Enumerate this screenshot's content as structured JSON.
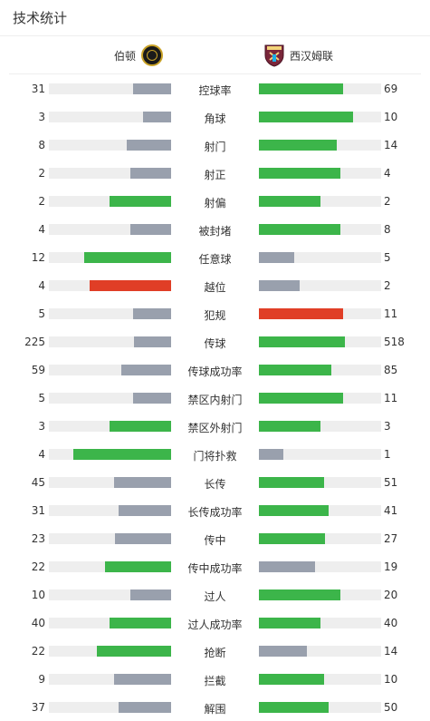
{
  "header": {
    "title": "技术统计"
  },
  "teams": {
    "home": {
      "name": "伯顿",
      "crest_icon": "burton-crest-icon"
    },
    "away": {
      "name": "西汉姆联",
      "crest_icon": "west-ham-crest-icon"
    }
  },
  "colors": {
    "lead": "#3cb54a",
    "trail": "#99a0ad",
    "card": "#e03e26",
    "track": "#eeeeee"
  },
  "stats": [
    {
      "label": "控球率",
      "home": "31",
      "away": "69",
      "home_frac": 0.31,
      "away_frac": 0.69,
      "home_color": "trail",
      "away_color": "lead"
    },
    {
      "label": "角球",
      "home": "3",
      "away": "10",
      "home_frac": 0.23,
      "away_frac": 0.77,
      "home_color": "trail",
      "away_color": "lead"
    },
    {
      "label": "射门",
      "home": "8",
      "away": "14",
      "home_frac": 0.36,
      "away_frac": 0.64,
      "home_color": "trail",
      "away_color": "lead"
    },
    {
      "label": "射正",
      "home": "2",
      "away": "4",
      "home_frac": 0.33,
      "away_frac": 0.67,
      "home_color": "trail",
      "away_color": "lead"
    },
    {
      "label": "射偏",
      "home": "2",
      "away": "2",
      "home_frac": 0.5,
      "away_frac": 0.5,
      "home_color": "lead",
      "away_color": "lead"
    },
    {
      "label": "被封堵",
      "home": "4",
      "away": "8",
      "home_frac": 0.33,
      "away_frac": 0.67,
      "home_color": "trail",
      "away_color": "lead"
    },
    {
      "label": "任意球",
      "home": "12",
      "away": "5",
      "home_frac": 0.71,
      "away_frac": 0.29,
      "home_color": "lead",
      "away_color": "trail"
    },
    {
      "label": "越位",
      "home": "4",
      "away": "2",
      "home_frac": 0.67,
      "away_frac": 0.33,
      "home_color": "card",
      "away_color": "trail"
    },
    {
      "label": "犯规",
      "home": "5",
      "away": "11",
      "home_frac": 0.31,
      "away_frac": 0.69,
      "home_color": "trail",
      "away_color": "card"
    },
    {
      "label": "传球",
      "home": "225",
      "away": "518",
      "home_frac": 0.3,
      "away_frac": 0.7,
      "home_color": "trail",
      "away_color": "lead"
    },
    {
      "label": "传球成功率",
      "home": "59",
      "away": "85",
      "home_frac": 0.41,
      "away_frac": 0.59,
      "home_color": "trail",
      "away_color": "lead"
    },
    {
      "label": "禁区内射门",
      "home": "5",
      "away": "11",
      "home_frac": 0.31,
      "away_frac": 0.69,
      "home_color": "trail",
      "away_color": "lead"
    },
    {
      "label": "禁区外射门",
      "home": "3",
      "away": "3",
      "home_frac": 0.5,
      "away_frac": 0.5,
      "home_color": "lead",
      "away_color": "lead"
    },
    {
      "label": "门将扑救",
      "home": "4",
      "away": "1",
      "home_frac": 0.8,
      "away_frac": 0.2,
      "home_color": "lead",
      "away_color": "trail"
    },
    {
      "label": "长传",
      "home": "45",
      "away": "51",
      "home_frac": 0.47,
      "away_frac": 0.53,
      "home_color": "trail",
      "away_color": "lead"
    },
    {
      "label": "长传成功率",
      "home": "31",
      "away": "41",
      "home_frac": 0.43,
      "away_frac": 0.57,
      "home_color": "trail",
      "away_color": "lead"
    },
    {
      "label": "传中",
      "home": "23",
      "away": "27",
      "home_frac": 0.46,
      "away_frac": 0.54,
      "home_color": "trail",
      "away_color": "lead"
    },
    {
      "label": "传中成功率",
      "home": "22",
      "away": "19",
      "home_frac": 0.54,
      "away_frac": 0.46,
      "home_color": "lead",
      "away_color": "trail"
    },
    {
      "label": "过人",
      "home": "10",
      "away": "20",
      "home_frac": 0.33,
      "away_frac": 0.67,
      "home_color": "trail",
      "away_color": "lead"
    },
    {
      "label": "过人成功率",
      "home": "40",
      "away": "40",
      "home_frac": 0.5,
      "away_frac": 0.5,
      "home_color": "lead",
      "away_color": "lead"
    },
    {
      "label": "抢断",
      "home": "22",
      "away": "14",
      "home_frac": 0.61,
      "away_frac": 0.39,
      "home_color": "lead",
      "away_color": "trail"
    },
    {
      "label": "拦截",
      "home": "9",
      "away": "10",
      "home_frac": 0.47,
      "away_frac": 0.53,
      "home_color": "trail",
      "away_color": "lead"
    },
    {
      "label": "解围",
      "home": "37",
      "away": "50",
      "home_frac": 0.43,
      "away_frac": 0.57,
      "home_color": "trail",
      "away_color": "lead"
    }
  ]
}
